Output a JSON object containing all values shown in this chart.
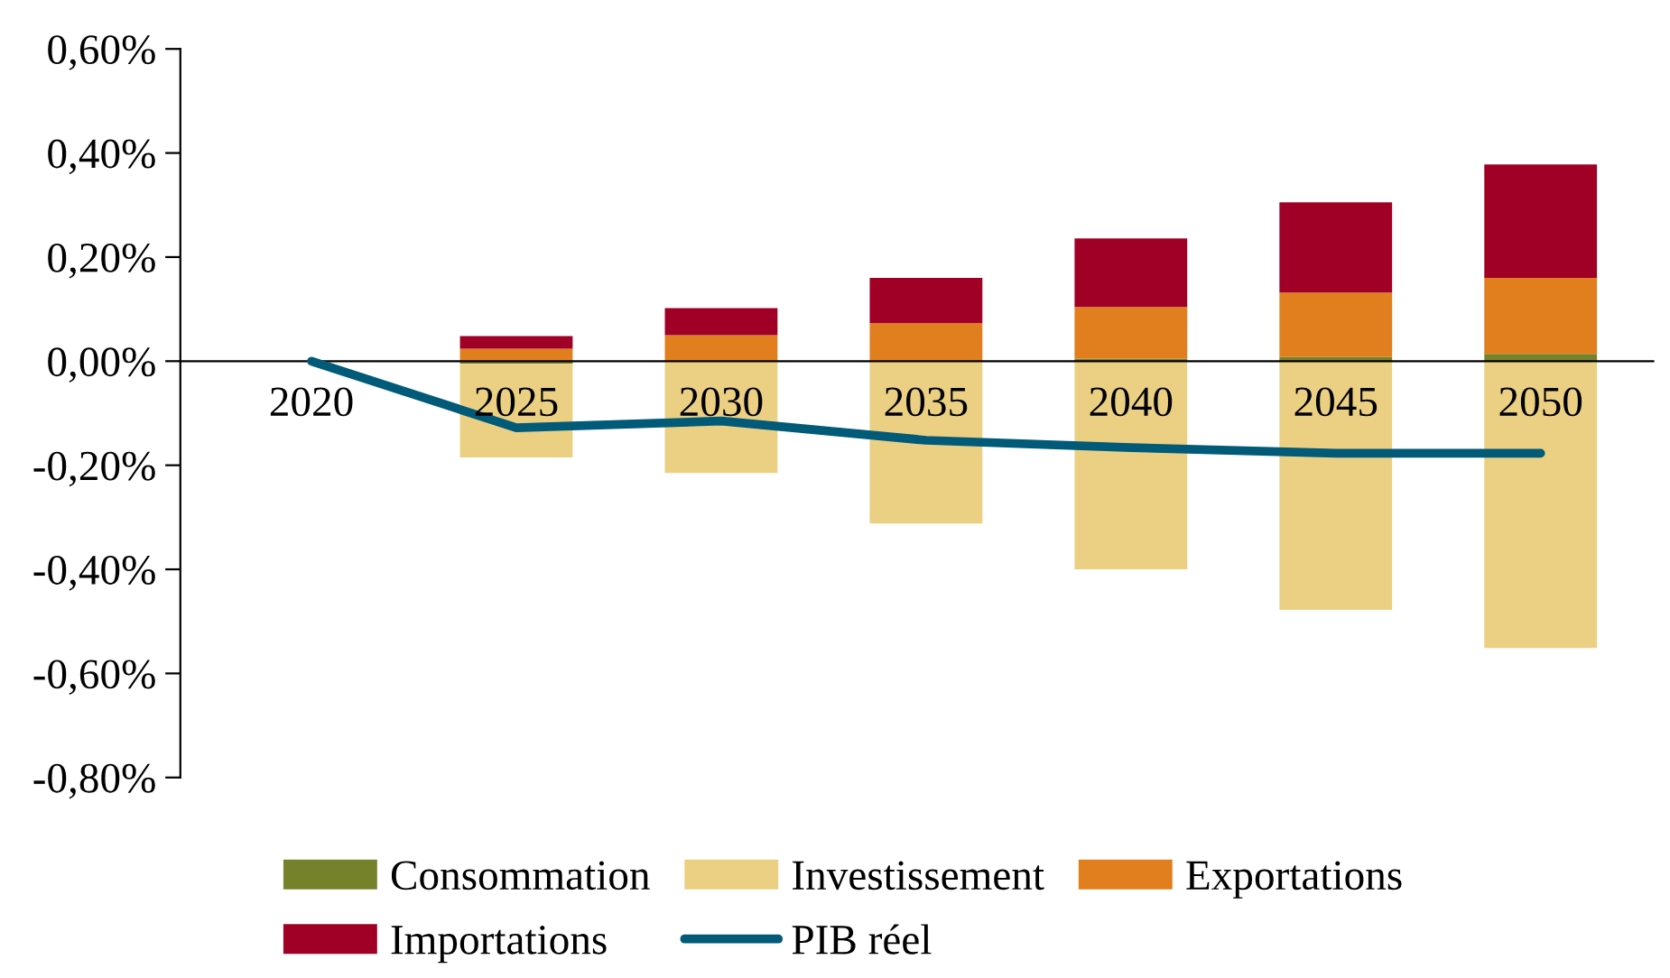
{
  "chart_data": {
    "type": "bar",
    "stacked": true,
    "categories": [
      "2020",
      "2025",
      "2030",
      "2035",
      "2040",
      "2045",
      "2050"
    ],
    "series": [
      {
        "name": "Consommation",
        "color": "#76822b",
        "values": [
          null,
          -0.005,
          null,
          null,
          0.005,
          0.008,
          0.014
        ]
      },
      {
        "name": "Investissement",
        "color": "#ebd084",
        "values": [
          null,
          -0.18,
          -0.215,
          -0.312,
          -0.4,
          -0.478,
          -0.551
        ]
      },
      {
        "name": "Exportations",
        "color": "#e17f1e",
        "values": [
          null,
          0.024,
          0.05,
          0.073,
          0.099,
          0.124,
          0.146
        ]
      },
      {
        "name": "Importations",
        "color": "#a00026",
        "values": [
          null,
          0.024,
          0.052,
          0.087,
          0.132,
          0.173,
          0.218
        ]
      },
      {
        "name": "PIB réel",
        "type": "line",
        "color": "#005a78",
        "values": [
          0,
          -0.128,
          -0.115,
          -0.152,
          -0.166,
          -0.177,
          -0.177
        ]
      }
    ],
    "ylim": [
      -0.8,
      0.6
    ],
    "yticks": [
      {
        "value": -0.8,
        "label": "-0,80%"
      },
      {
        "value": -0.6,
        "label": "-0,60%"
      },
      {
        "value": -0.4,
        "label": "-0,40%"
      },
      {
        "value": -0.2,
        "label": "-0,20%"
      },
      {
        "value": 0,
        "label": "0,00%"
      },
      {
        "value": 0.2,
        "label": "0,20%"
      },
      {
        "value": 0.4,
        "label": "0,40%"
      },
      {
        "value": 0.6,
        "label": "0,60%"
      }
    ],
    "grid": false,
    "legend": "bottom",
    "marker": "none"
  }
}
